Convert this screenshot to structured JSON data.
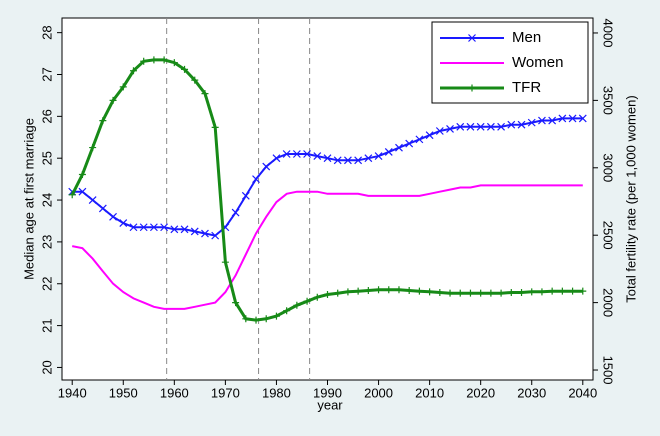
{
  "chart_data": {
    "type": "line",
    "xlabel": "year",
    "ylabel": "Median age at first marriage",
    "y2label": "Total fertility rate (per 1,000 women)",
    "x": [
      1940,
      1942,
      1944,
      1946,
      1948,
      1950,
      1952,
      1954,
      1956,
      1958,
      1960,
      1962,
      1964,
      1966,
      1968,
      1970,
      1972,
      1974,
      1976,
      1978,
      1980,
      1982,
      1984,
      1986,
      1988,
      1990,
      1992,
      1994,
      1996,
      1998,
      2000,
      2002,
      2004,
      2006,
      2008,
      2010,
      2012,
      2014,
      2016,
      2018,
      2020,
      2022,
      2024,
      2026,
      2028,
      2030,
      2032,
      2034,
      2036,
      2038,
      2040
    ],
    "series": [
      {
        "name": "Men",
        "color": "#1a1aff",
        "marker": "x",
        "values": [
          24.2,
          24.2,
          24.0,
          23.8,
          23.6,
          23.45,
          23.35,
          23.35,
          23.35,
          23.35,
          23.3,
          23.3,
          23.25,
          23.2,
          23.15,
          23.35,
          23.7,
          24.1,
          24.5,
          24.8,
          25.0,
          25.1,
          25.1,
          25.1,
          25.05,
          25.0,
          24.95,
          24.95,
          24.95,
          25.0,
          25.05,
          25.15,
          25.25,
          25.35,
          25.45,
          25.55,
          25.65,
          25.7,
          25.75,
          25.75,
          25.75,
          25.75,
          25.75,
          25.8,
          25.8,
          25.85,
          25.9,
          25.9,
          25.95,
          25.95,
          25.95
        ]
      },
      {
        "name": "Women",
        "color": "#ff00ff",
        "marker": "none",
        "values": [
          22.9,
          22.85,
          22.6,
          22.3,
          22.0,
          21.8,
          21.65,
          21.55,
          21.45,
          21.4,
          21.4,
          21.4,
          21.45,
          21.5,
          21.55,
          21.8,
          22.2,
          22.7,
          23.2,
          23.6,
          23.95,
          24.15,
          24.2,
          24.2,
          24.2,
          24.15,
          24.15,
          24.15,
          24.15,
          24.1,
          24.1,
          24.1,
          24.1,
          24.1,
          24.1,
          24.15,
          24.2,
          24.25,
          24.3,
          24.3,
          24.35,
          24.35,
          24.35,
          24.35,
          24.35,
          24.35,
          24.35,
          24.35,
          24.35,
          24.35,
          24.35
        ]
      },
      {
        "name": "TFR",
        "color": "#178a17",
        "marker": "+",
        "axis": "y2",
        "values": [
          2800,
          2950,
          3150,
          3350,
          3500,
          3600,
          3720,
          3790,
          3800,
          3800,
          3780,
          3730,
          3650,
          3550,
          3300,
          2300,
          2000,
          1880,
          1870,
          1880,
          1900,
          1940,
          1980,
          2010,
          2040,
          2060,
          2070,
          2080,
          2085,
          2090,
          2095,
          2095,
          2095,
          2090,
          2085,
          2080,
          2075,
          2070,
          2070,
          2070,
          2070,
          2070,
          2070,
          2075,
          2075,
          2080,
          2080,
          2085,
          2085,
          2085,
          2085
        ]
      }
    ],
    "xlim": [
      1938,
      2042
    ],
    "xticks": [
      1940,
      1950,
      1960,
      1970,
      1980,
      1990,
      2000,
      2010,
      2020,
      2030,
      2040
    ],
    "ylim": [
      19.7,
      28.35
    ],
    "yticks": [
      20,
      21,
      22,
      23,
      24,
      25,
      26,
      27,
      28
    ],
    "y2lim": [
      1426,
      4111
    ],
    "y2ticks": [
      1500,
      2000,
      2500,
      3000,
      3500,
      4000
    ],
    "vlines": [
      1958.5,
      1976.5,
      1986.5
    ],
    "legend": "top-right",
    "grid": false
  }
}
